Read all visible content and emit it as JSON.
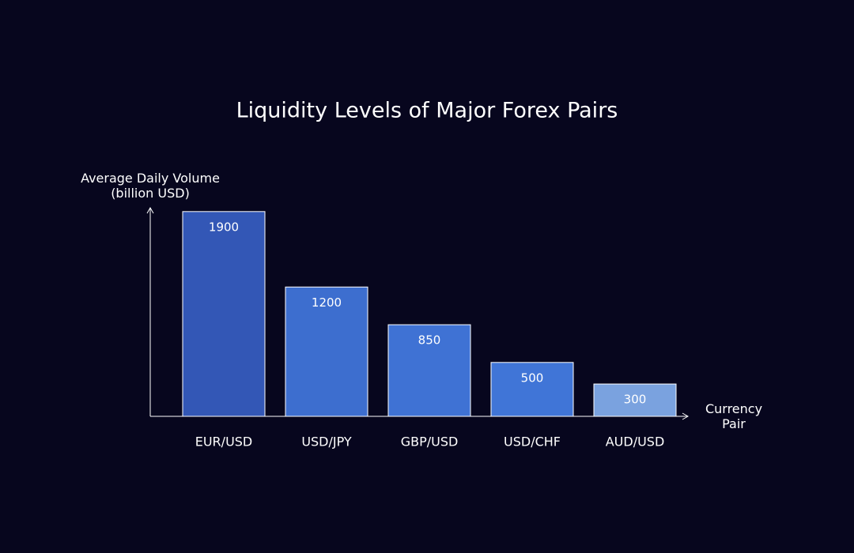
{
  "chart_data": {
    "type": "bar",
    "title": "Liquidity Levels of Major Forex Pairs",
    "y_label": "Average Daily Volume (billion USD)",
    "x_label": "Currency Pair",
    "categories": [
      "EUR/USD",
      "USD/JPY",
      "GBP/USD",
      "USD/CHF",
      "AUD/USD"
    ],
    "values": [
      1900,
      1200,
      850,
      500,
      300
    ],
    "colors": [
      "#3357b6",
      "#3d6ecf",
      "#3f72d4",
      "#4075d7",
      "#7aa2df"
    ],
    "ylim": [
      0,
      1950
    ],
    "grid": false
  }
}
